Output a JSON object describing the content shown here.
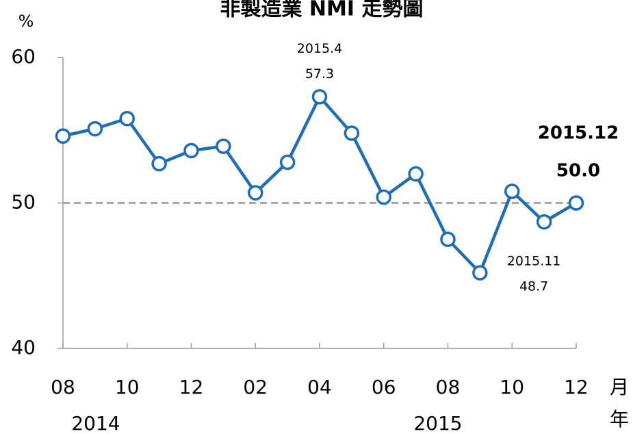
{
  "chart_data": {
    "type": "line",
    "title": "非製造業 NMI 走勢圖",
    "y_label": "%",
    "categories": [
      "08",
      null,
      "10",
      null,
      "12",
      null,
      "02",
      null,
      "04",
      null,
      "06",
      null,
      "08",
      null,
      "10",
      null,
      "12"
    ],
    "values": [
      54.6,
      55.1,
      55.8,
      52.7,
      53.6,
      53.9,
      50.7,
      52.8,
      57.3,
      54.8,
      50.4,
      52.0,
      47.5,
      45.2,
      50.8,
      48.7,
      50.0
    ],
    "value_labels": [
      null,
      null,
      null,
      null,
      null,
      null,
      null,
      null,
      "57.3",
      null,
      null,
      null,
      null,
      null,
      null,
      "48.7",
      "50.0"
    ],
    "point_labels": [
      null,
      null,
      null,
      null,
      null,
      null,
      null,
      null,
      "2015.4",
      null,
      null,
      null,
      null,
      null,
      null,
      "2015.11",
      "2015.12"
    ],
    "years": [
      "2014",
      "2015"
    ],
    "month_unit": "月",
    "year_unit": "年",
    "color": "#1f6db5",
    "reference_line": 50,
    "ylim": [
      40,
      60
    ],
    "yticks": [
      40,
      50,
      60
    ]
  }
}
